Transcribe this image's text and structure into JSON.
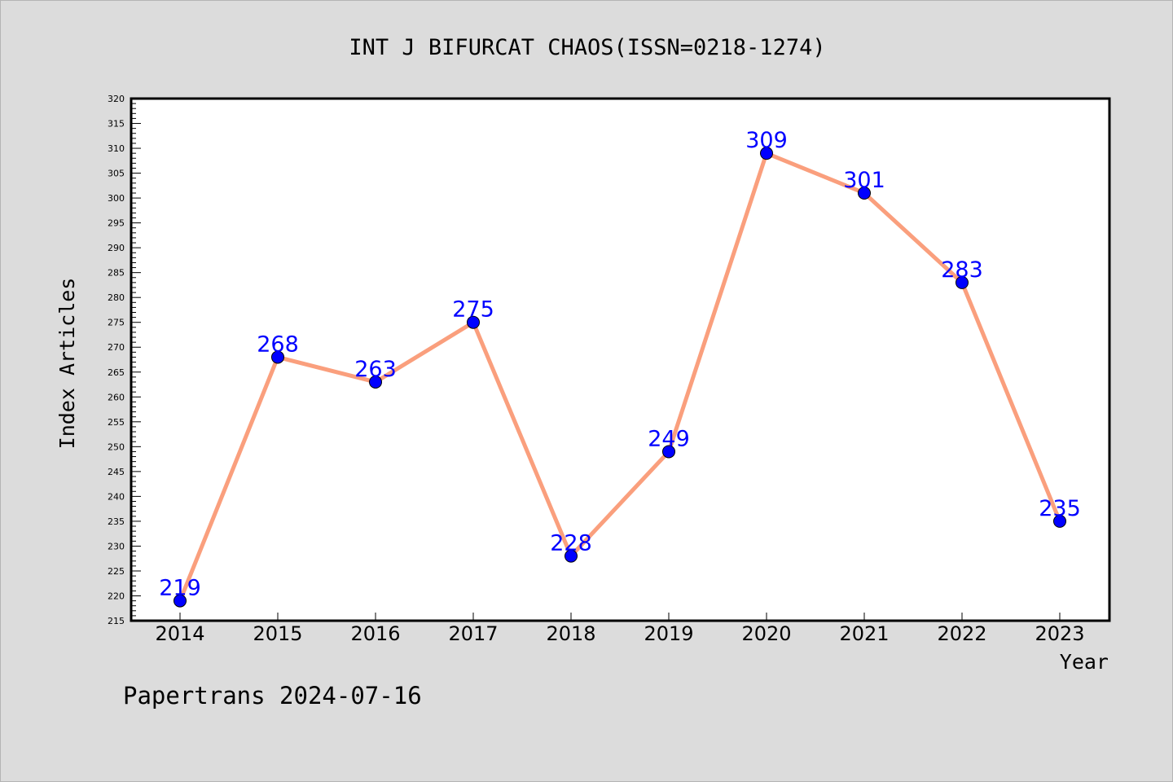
{
  "chart_data": {
    "type": "line",
    "title": "INT J BIFURCAT CHAOS(ISSN=0218-1274)",
    "xlabel": "Year",
    "ylabel": "Index Articles",
    "categories": [
      "2014",
      "2015",
      "2016",
      "2017",
      "2018",
      "2019",
      "2020",
      "2021",
      "2022",
      "2023"
    ],
    "series": [
      {
        "values": [
          219,
          268,
          263,
          275,
          228,
          249,
          309,
          301,
          283,
          235
        ],
        "line_color": "#fa9f7d",
        "marker_color": "#0000ff",
        "label_color": "#0000ff"
      }
    ],
    "ylim": [
      215,
      320
    ],
    "y_major_step": 5,
    "y_minor_step": 1,
    "grid": false,
    "legend": "none",
    "footer": "Papertrans 2024-07-16",
    "colors": {
      "background": "#dcdcdc",
      "plot_background": "#ffffff",
      "axis": "#000000"
    }
  }
}
